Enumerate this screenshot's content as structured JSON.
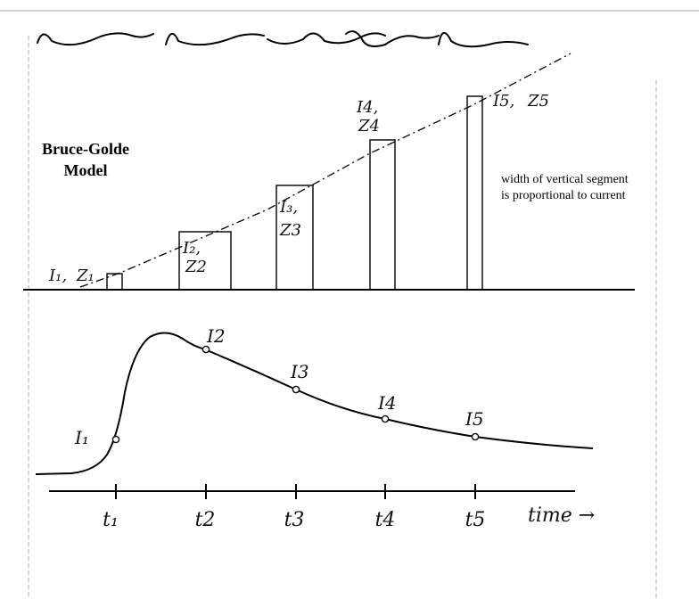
{
  "title": {
    "line1": "Bruce-Golde",
    "line2": "Model"
  },
  "note": {
    "line1": "width of vertical segment",
    "line2": "is proportional to current"
  },
  "segments": [
    {
      "label_i": "I₁,",
      "label_z": "Z₁"
    },
    {
      "label_i": "I₂,",
      "label_z": "Z2"
    },
    {
      "label_i": "I₃,",
      "label_z": "Z3"
    },
    {
      "label_i": "I4,",
      "label_z": "Z4"
    },
    {
      "label_i": "I5,",
      "label_z": "Z5"
    }
  ],
  "current_points": [
    "I₁",
    "I2",
    "I3",
    "I4",
    "I5"
  ],
  "time_ticks": [
    "t₁",
    "t2",
    "t3",
    "t4",
    "t5"
  ],
  "time_axis_label": "time →"
}
